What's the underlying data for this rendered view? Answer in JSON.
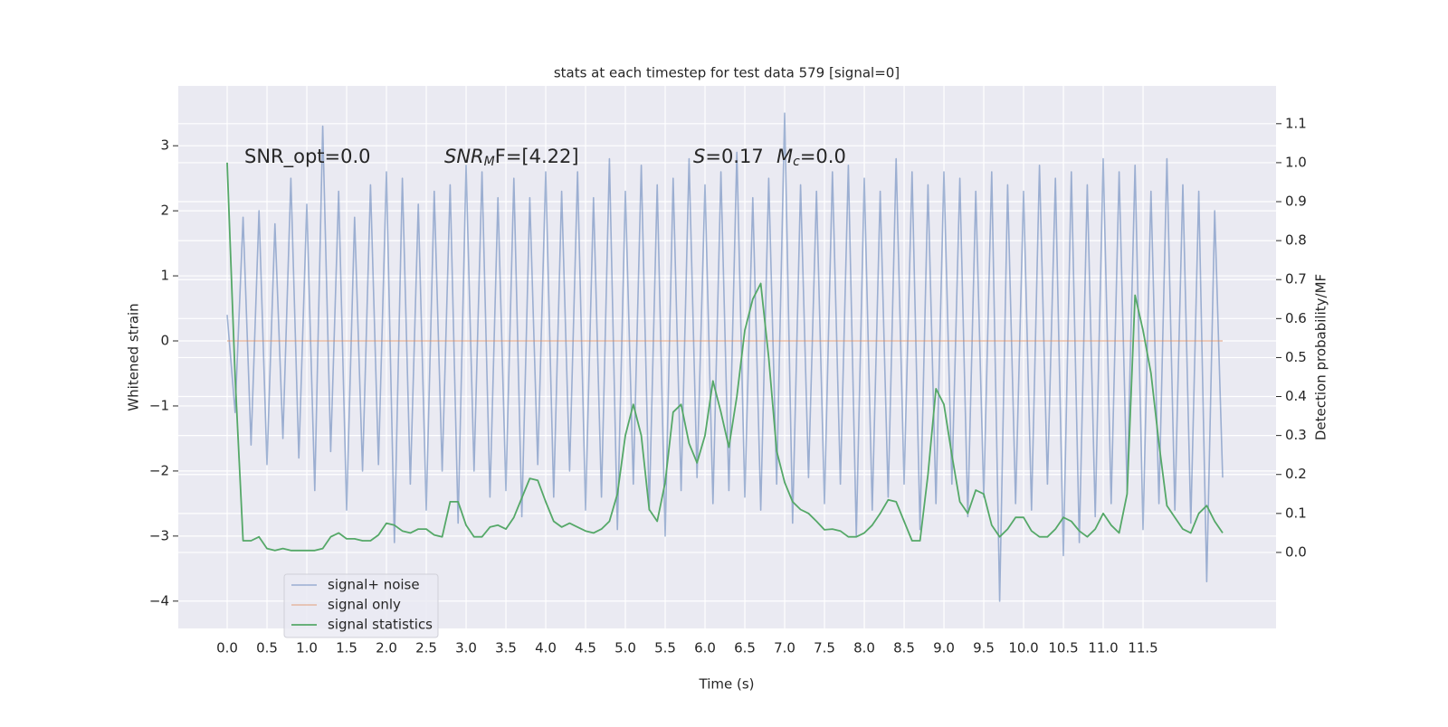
{
  "chart_data": {
    "type": "line",
    "title": "stats at each timestep for test data 579 [signal=0]",
    "x_label": "Time (s)",
    "y_label": "Whitened strain",
    "y2_label": "Detection probability/MF",
    "annotations": [
      {
        "text": "SNR_opt=0.0"
      },
      {
        "italic": "SNR",
        "sub": "M",
        "after": "F=[4.22]"
      },
      {
        "italic": "S",
        "after": "=0.17"
      },
      {
        "italic": "M",
        "sub": "c",
        "after": "=0.0"
      }
    ],
    "x": [
      0.0,
      0.1,
      0.2,
      0.3,
      0.4,
      0.5,
      0.6,
      0.7,
      0.8,
      0.9,
      1.0,
      1.1,
      1.2,
      1.3,
      1.4,
      1.5,
      1.6,
      1.7,
      1.8,
      1.9,
      2.0,
      2.1,
      2.2,
      2.3,
      2.4,
      2.5,
      2.6,
      2.7,
      2.8,
      2.9,
      3.0,
      3.1,
      3.2,
      3.3,
      3.4,
      3.5,
      3.6,
      3.7,
      3.8,
      3.9,
      4.0,
      4.1,
      4.2,
      4.3,
      4.4,
      4.5,
      4.6,
      4.7,
      4.8,
      4.9,
      5.0,
      5.1,
      5.2,
      5.3,
      5.4,
      5.5,
      5.6,
      5.7,
      5.8,
      5.9,
      6.0,
      6.1,
      6.2,
      6.3,
      6.4,
      6.5,
      6.6,
      6.7,
      6.8,
      6.9,
      7.0,
      7.1,
      7.2,
      7.3,
      7.4,
      7.5,
      7.6,
      7.7,
      7.8,
      7.9,
      8.0,
      8.1,
      8.2,
      8.3,
      8.4,
      8.5,
      8.6,
      8.7,
      8.8,
      8.9,
      9.0,
      9.1,
      9.2,
      9.3,
      9.4,
      9.5,
      9.6,
      9.7,
      9.8,
      9.9,
      10.0,
      10.1,
      10.2,
      10.3,
      10.4,
      10.5,
      10.6,
      10.7,
      10.8,
      10.9,
      11.0,
      11.1,
      11.2,
      11.3,
      11.4,
      11.5,
      11.6,
      11.7,
      11.8,
      11.9,
      12.0,
      12.1,
      12.2,
      12.3,
      12.4,
      12.5
    ],
    "series": [
      {
        "name": "signal+ noise",
        "color": "#4c72b0",
        "values": [
          0.4,
          -1.1,
          1.9,
          -1.6,
          2.0,
          -1.9,
          1.8,
          -1.5,
          2.5,
          -1.8,
          2.1,
          -2.3,
          3.3,
          -1.7,
          2.3,
          -2.6,
          1.9,
          -2.0,
          2.4,
          -1.9,
          2.6,
          -3.1,
          2.5,
          -2.2,
          2.1,
          -2.6,
          2.3,
          -2.0,
          2.4,
          -2.8,
          2.7,
          -2.0,
          2.6,
          -2.4,
          2.2,
          -2.3,
          2.5,
          -2.7,
          2.2,
          -1.9,
          2.6,
          -2.4,
          2.3,
          -2.0,
          2.6,
          -2.6,
          2.2,
          -2.4,
          2.8,
          -2.9,
          2.3,
          -2.2,
          2.7,
          -2.6,
          2.4,
          -3.0,
          2.5,
          -2.3,
          2.8,
          -2.1,
          2.4,
          -2.5,
          2.6,
          -2.3,
          2.9,
          -2.4,
          2.2,
          -2.6,
          2.5,
          -2.2,
          3.5,
          -2.8,
          2.4,
          -2.1,
          2.3,
          -2.5,
          2.6,
          -2.2,
          2.7,
          -3.0,
          2.5,
          -2.6,
          2.3,
          -2.4,
          2.8,
          -2.2,
          2.6,
          -2.9,
          2.4,
          -2.5,
          2.6,
          -2.2,
          2.5,
          -2.7,
          2.3,
          -2.4,
          2.6,
          -4.0,
          2.4,
          -2.5,
          2.3,
          -2.6,
          2.7,
          -2.2,
          2.5,
          -3.3,
          2.6,
          -3.1,
          2.4,
          -2.7,
          2.8,
          -2.5,
          2.6,
          -2.3,
          2.7,
          -2.9,
          2.3,
          -2.5,
          2.8,
          -2.6,
          2.4,
          -2.8,
          2.3,
          -3.7,
          2.0,
          -2.1
        ]
      },
      {
        "name": "signal only",
        "color": "#dd8452",
        "values": [
          0,
          0,
          0,
          0,
          0,
          0,
          0,
          0,
          0,
          0,
          0,
          0,
          0,
          0,
          0,
          0,
          0,
          0,
          0,
          0,
          0,
          0,
          0,
          0,
          0,
          0,
          0,
          0,
          0,
          0,
          0,
          0,
          0,
          0,
          0,
          0,
          0,
          0,
          0,
          0,
          0,
          0,
          0,
          0,
          0,
          0,
          0,
          0,
          0,
          0,
          0,
          0,
          0,
          0,
          0,
          0,
          0,
          0,
          0,
          0,
          0,
          0,
          0,
          0,
          0,
          0,
          0,
          0,
          0,
          0,
          0,
          0,
          0,
          0,
          0,
          0,
          0,
          0,
          0,
          0,
          0,
          0,
          0,
          0,
          0,
          0,
          0,
          0,
          0,
          0,
          0,
          0,
          0,
          0,
          0,
          0,
          0,
          0,
          0,
          0,
          0,
          0,
          0,
          0,
          0,
          0,
          0,
          0,
          0,
          0,
          0,
          0,
          0,
          0,
          0,
          0,
          0,
          0,
          0,
          0,
          0,
          0,
          0,
          0,
          0,
          0
        ]
      },
      {
        "name": "signal statistics",
        "color": "#55a868",
        "axis": "y2",
        "values": [
          1.0,
          0.45,
          0.03,
          0.03,
          0.04,
          0.01,
          0.005,
          0.01,
          0.005,
          0.005,
          0.005,
          0.005,
          0.01,
          0.04,
          0.05,
          0.035,
          0.035,
          0.03,
          0.03,
          0.045,
          0.075,
          0.07,
          0.055,
          0.05,
          0.06,
          0.06,
          0.045,
          0.04,
          0.13,
          0.13,
          0.07,
          0.04,
          0.04,
          0.065,
          0.07,
          0.06,
          0.09,
          0.14,
          0.19,
          0.185,
          0.13,
          0.08,
          0.065,
          0.075,
          0.065,
          0.055,
          0.05,
          0.06,
          0.08,
          0.15,
          0.3,
          0.38,
          0.3,
          0.11,
          0.08,
          0.18,
          0.36,
          0.38,
          0.28,
          0.23,
          0.3,
          0.44,
          0.36,
          0.27,
          0.4,
          0.57,
          0.65,
          0.69,
          0.5,
          0.26,
          0.18,
          0.13,
          0.11,
          0.1,
          0.08,
          0.058,
          0.06,
          0.055,
          0.04,
          0.04,
          0.05,
          0.07,
          0.1,
          0.135,
          0.13,
          0.08,
          0.03,
          0.03,
          0.2,
          0.42,
          0.38,
          0.25,
          0.13,
          0.1,
          0.16,
          0.15,
          0.07,
          0.04,
          0.06,
          0.09,
          0.09,
          0.055,
          0.04,
          0.04,
          0.06,
          0.09,
          0.08,
          0.055,
          0.04,
          0.06,
          0.1,
          0.07,
          0.05,
          0.15,
          0.66,
          0.57,
          0.46,
          0.28,
          0.12,
          0.09,
          0.06,
          0.05,
          0.1,
          0.12,
          0.08,
          0.05
        ]
      }
    ],
    "xlim": [
      -0.614,
      13.17
    ],
    "xticks": [
      {
        "value": 0,
        "label": "0.0"
      },
      0.5,
      {
        "value": 1,
        "label": "1.0"
      },
      1.5,
      {
        "value": 2,
        "label": "2.0"
      },
      2.5,
      {
        "value": 3,
        "label": "3.0"
      },
      3.5,
      {
        "value": 4,
        "label": "4.0"
      },
      4.5,
      {
        "value": 5,
        "label": "5.0"
      },
      5.5,
      {
        "value": 6,
        "label": "6.0"
      },
      6.5,
      {
        "value": 7,
        "label": "7.0"
      },
      7.5,
      {
        "value": 8,
        "label": "8.0"
      },
      8.5,
      {
        "value": 9,
        "label": "9.0"
      },
      9.5,
      {
        "value": 10,
        "label": "10.0"
      },
      10.5,
      {
        "value": 11,
        "label": "11.0"
      },
      11.5
    ],
    "ylim": [
      -4.42,
      3.92
    ],
    "yticks": [
      {
        "value": -4,
        "label": "−4"
      },
      {
        "value": -3,
        "label": "−3"
      },
      {
        "value": -2,
        "label": "−2"
      },
      {
        "value": -1,
        "label": "−1"
      },
      0,
      1,
      2,
      3
    ],
    "y2lim": [
      -0.195,
      1.197
    ],
    "y2ticks": [
      {
        "value": 0,
        "label": "0.0"
      },
      0.1,
      0.2,
      0.3,
      0.4,
      0.5,
      0.6,
      0.7,
      0.8,
      0.9,
      {
        "value": 1,
        "label": "1.0"
      },
      1.1
    ],
    "grid": true,
    "legend": "lower left"
  }
}
